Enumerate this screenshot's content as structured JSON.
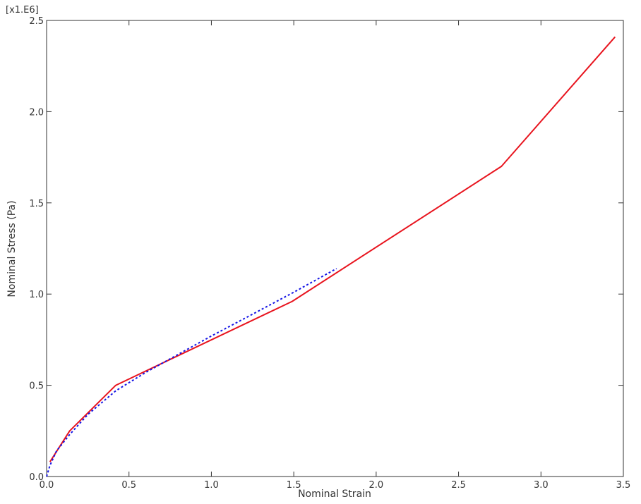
{
  "chart_data": {
    "type": "line",
    "title": "",
    "xlabel": "Nominal Strain",
    "ylabel": "Nominal Stress (Pa)",
    "y_multiplier_label": "[x1.E6]",
    "xlim": [
      0.0,
      3.5
    ],
    "ylim": [
      0.0,
      2.5
    ],
    "x_ticks": [
      0.0,
      0.5,
      1.0,
      1.5,
      2.0,
      2.5,
      3.0,
      3.5
    ],
    "x_tick_labels": [
      "0.0",
      "0.5",
      "1.0",
      "1.5",
      "2.0",
      "2.5",
      "3.0",
      "3.5"
    ],
    "y_ticks": [
      0.0,
      0.5,
      1.0,
      1.5,
      2.0,
      2.5
    ],
    "y_tick_labels": [
      "0.0",
      "0.5",
      "1.0",
      "1.5",
      "2.0",
      "2.5"
    ],
    "grid": false,
    "legend": "none",
    "series": [
      {
        "color": "#e8141e",
        "style": "solid",
        "x": [
          0.02,
          0.14,
          0.42,
          1.49,
          2.76,
          3.45
        ],
        "y": [
          0.08,
          0.25,
          0.5,
          0.96,
          1.7,
          2.41
        ]
      },
      {
        "color": "#1414e6",
        "style": "dotted",
        "x": [
          0.0,
          0.02,
          0.06,
          0.14,
          0.25,
          0.42,
          0.6,
          0.8,
          1.0,
          1.25,
          1.5,
          1.76
        ],
        "y": [
          0.0,
          0.06,
          0.14,
          0.23,
          0.34,
          0.47,
          0.57,
          0.67,
          0.77,
          0.89,
          1.01,
          1.14
        ]
      }
    ]
  }
}
